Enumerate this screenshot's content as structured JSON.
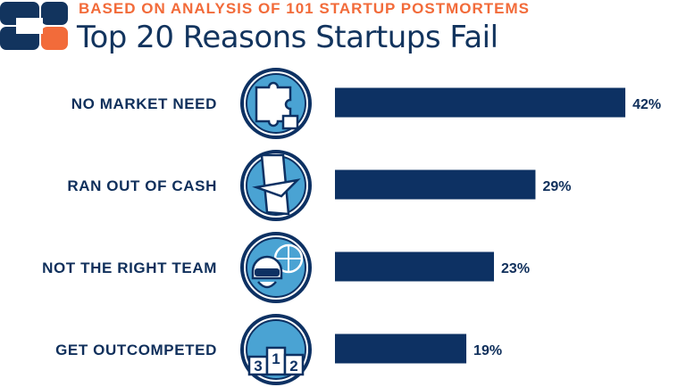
{
  "header": {
    "subtitle": "BASED ON ANALYSIS OF 101 STARTUP POSTMORTEMS",
    "title": "Top 20 Reasons Startups Fail"
  },
  "colors": {
    "bar": "#0d3163",
    "accent": "#f26b3a",
    "icon_fill": "#4aa3d3",
    "icon_stroke": "#0d3163"
  },
  "chart_data": {
    "type": "bar",
    "orientation": "horizontal",
    "title": "Top 20 Reasons Startups Fail",
    "subtitle": "BASED ON ANALYSIS OF 101 STARTUP POSTMORTEMS",
    "categories": [
      "NO MARKET NEED",
      "RAN OUT OF CASH",
      "NOT THE RIGHT TEAM",
      "GET OUTCOMPETED"
    ],
    "values": [
      42,
      29,
      23,
      19
    ],
    "value_labels": [
      "42%",
      "29%",
      "23%",
      "19%"
    ],
    "icons": [
      "puzzle-icon",
      "cash-hand-icon",
      "team-vr-icon",
      "podium-icon"
    ],
    "podium_numbers": [
      "3",
      "1",
      "2"
    ],
    "unit": "%",
    "grid": false,
    "legend": "none"
  }
}
